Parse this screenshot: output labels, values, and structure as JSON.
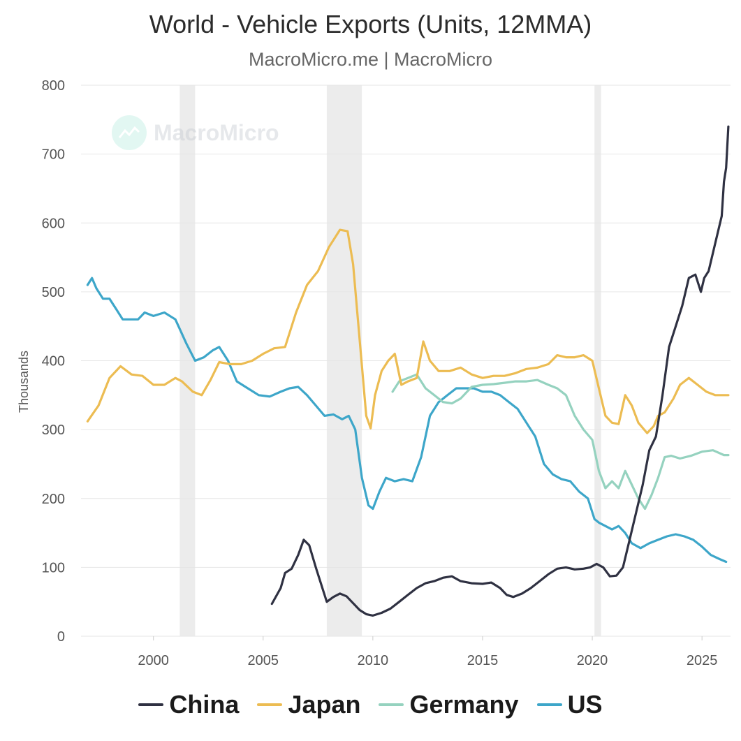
{
  "title": "World - Vehicle Exports (Units, 12MMA)",
  "subtitle": "MacroMicro.me | MacroMicro",
  "watermark": {
    "text": "MacroMicro",
    "icon": "macromicro-logo-icon"
  },
  "chart_data": {
    "type": "line",
    "ylabel": "Thousands",
    "xlim": [
      1996.7,
      2026.3
    ],
    "ylim": [
      0,
      800
    ],
    "yticks": [
      "0",
      "100",
      "200",
      "300",
      "400",
      "500",
      "600",
      "700",
      "800"
    ],
    "xticks": [
      "2000",
      "2005",
      "2010",
      "2015",
      "2020",
      "2025"
    ],
    "grid": "horizontal",
    "legend_position": "bottom",
    "recession_bands": [
      [
        2001.2,
        2001.9
      ],
      [
        2007.9,
        2009.5
      ],
      [
        2020.1,
        2020.4
      ]
    ],
    "series": [
      {
        "name": "China",
        "color": "#2f3142",
        "x": [
          2005.4,
          2005.8,
          2006.0,
          2006.3,
          2006.6,
          2006.85,
          2007.1,
          2007.4,
          2007.7,
          2007.9,
          2008.2,
          2008.5,
          2008.8,
          2009.1,
          2009.4,
          2009.7,
          2010.0,
          2010.4,
          2010.8,
          2011.2,
          2011.6,
          2012.0,
          2012.4,
          2012.8,
          2013.2,
          2013.6,
          2014.0,
          2014.5,
          2015.0,
          2015.4,
          2015.8,
          2016.1,
          2016.4,
          2016.8,
          2017.2,
          2017.6,
          2018.0,
          2018.4,
          2018.8,
          2019.2,
          2019.6,
          2019.9,
          2020.2,
          2020.5,
          2020.8,
          2021.1,
          2021.4,
          2021.7,
          2022.0,
          2022.3,
          2022.6,
          2022.9,
          2023.2,
          2023.5,
          2023.8,
          2024.1,
          2024.4,
          2024.7,
          2024.95,
          2025.1,
          2025.3,
          2025.6,
          2025.9,
          2026.0,
          2026.1,
          2026.2
        ],
        "y": [
          47,
          70,
          92,
          98,
          118,
          140,
          132,
          100,
          70,
          50,
          57,
          62,
          58,
          48,
          38,
          32,
          30,
          34,
          40,
          50,
          60,
          70,
          77,
          80,
          85,
          87,
          80,
          77,
          76,
          78,
          70,
          60,
          57,
          62,
          70,
          80,
          90,
          98,
          100,
          97,
          98,
          100,
          105,
          100,
          87,
          88,
          100,
          140,
          180,
          220,
          270,
          290,
          350,
          420,
          450,
          480,
          520,
          525,
          500,
          520,
          530,
          570,
          610,
          660,
          680,
          740
        ]
      },
      {
        "name": "Japan",
        "color": "#ecbc52",
        "x": [
          1997.0,
          1997.5,
          1998.0,
          1998.5,
          1999.0,
          1999.5,
          2000.0,
          2000.5,
          2001.0,
          2001.3,
          2001.8,
          2002.2,
          2002.6,
          2003.0,
          2003.5,
          2004.0,
          2004.5,
          2005.0,
          2005.5,
          2006.0,
          2006.5,
          2007.0,
          2007.5,
          2008.0,
          2008.5,
          2008.85,
          2009.1,
          2009.4,
          2009.7,
          2009.9,
          2010.1,
          2010.4,
          2010.7,
          2011.0,
          2011.3,
          2011.6,
          2012.0,
          2012.3,
          2012.6,
          2013.0,
          2013.5,
          2014.0,
          2014.5,
          2015.0,
          2015.5,
          2016.0,
          2016.5,
          2017.0,
          2017.5,
          2018.0,
          2018.4,
          2018.8,
          2019.2,
          2019.6,
          2020.0,
          2020.3,
          2020.6,
          2020.9,
          2021.2,
          2021.5,
          2021.8,
          2022.1,
          2022.5,
          2022.8,
          2023.0,
          2023.3,
          2023.7,
          2024.0,
          2024.4,
          2024.8,
          2025.2,
          2025.6,
          2026.0,
          2026.2
        ],
        "y": [
          312,
          335,
          375,
          392,
          380,
          378,
          365,
          365,
          375,
          370,
          355,
          350,
          372,
          398,
          395,
          395,
          400,
          410,
          418,
          420,
          470,
          510,
          530,
          565,
          590,
          588,
          540,
          430,
          320,
          302,
          350,
          385,
          400,
          410,
          365,
          370,
          375,
          428,
          400,
          385,
          385,
          390,
          380,
          375,
          378,
          378,
          382,
          388,
          390,
          395,
          408,
          405,
          405,
          408,
          400,
          360,
          320,
          310,
          308,
          350,
          335,
          310,
          295,
          305,
          320,
          325,
          345,
          365,
          375,
          365,
          355,
          350,
          350,
          350
        ]
      },
      {
        "name": "Germany",
        "color": "#95d2bf",
        "x": [
          2010.9,
          2011.2,
          2011.6,
          2012.0,
          2012.4,
          2012.8,
          2013.2,
          2013.6,
          2014.0,
          2014.5,
          2015.0,
          2015.5,
          2016.0,
          2016.5,
          2017.0,
          2017.5,
          2018.0,
          2018.4,
          2018.8,
          2019.2,
          2019.6,
          2020.0,
          2020.3,
          2020.6,
          2020.9,
          2021.2,
          2021.5,
          2021.8,
          2022.1,
          2022.4,
          2022.7,
          2023.0,
          2023.3,
          2023.6,
          2024.0,
          2024.5,
          2025.0,
          2025.5,
          2026.0,
          2026.2
        ],
        "y": [
          355,
          370,
          375,
          380,
          360,
          350,
          340,
          338,
          345,
          362,
          365,
          366,
          368,
          370,
          370,
          372,
          365,
          360,
          350,
          320,
          300,
          285,
          240,
          215,
          225,
          215,
          240,
          220,
          200,
          185,
          205,
          230,
          260,
          262,
          258,
          262,
          268,
          270,
          263,
          263
        ]
      },
      {
        "name": "US",
        "color": "#3da6c9",
        "x": [
          1997.0,
          1997.2,
          1997.4,
          1997.7,
          1998.0,
          1998.3,
          1998.6,
          1999.0,
          1999.3,
          1999.6,
          2000.0,
          2000.5,
          2001.0,
          2001.5,
          2001.9,
          2002.3,
          2002.7,
          2003.0,
          2003.4,
          2003.8,
          2004.3,
          2004.8,
          2005.3,
          2005.8,
          2006.2,
          2006.6,
          2007.0,
          2007.4,
          2007.8,
          2008.2,
          2008.6,
          2008.9,
          2009.2,
          2009.5,
          2009.8,
          2010.0,
          2010.3,
          2010.6,
          2011.0,
          2011.4,
          2011.8,
          2012.2,
          2012.6,
          2013.0,
          2013.4,
          2013.8,
          2014.2,
          2014.6,
          2015.0,
          2015.4,
          2015.8,
          2016.2,
          2016.6,
          2017.0,
          2017.4,
          2017.8,
          2018.2,
          2018.6,
          2019.0,
          2019.4,
          2019.8,
          2020.1,
          2020.3,
          2020.6,
          2020.9,
          2021.2,
          2021.5,
          2021.8,
          2022.2,
          2022.6,
          2023.0,
          2023.4,
          2023.8,
          2024.2,
          2024.6,
          2025.0,
          2025.4,
          2025.8,
          2026.1
        ],
        "y": [
          510,
          520,
          505,
          490,
          490,
          475,
          460,
          460,
          460,
          470,
          465,
          470,
          460,
          425,
          400,
          405,
          415,
          420,
          400,
          370,
          360,
          350,
          348,
          355,
          360,
          362,
          350,
          335,
          320,
          322,
          315,
          320,
          300,
          230,
          190,
          185,
          210,
          230,
          225,
          228,
          225,
          260,
          320,
          340,
          350,
          360,
          360,
          360,
          355,
          355,
          350,
          340,
          330,
          310,
          290,
          250,
          235,
          228,
          225,
          210,
          200,
          170,
          165,
          160,
          155,
          160,
          150,
          135,
          128,
          135,
          140,
          145,
          148,
          145,
          140,
          130,
          118,
          112,
          108
        ]
      }
    ]
  }
}
